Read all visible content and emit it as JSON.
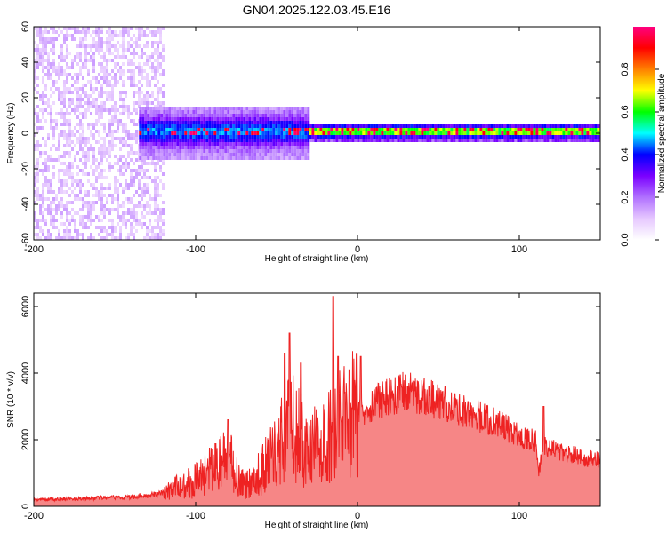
{
  "title": "GN04.2025.122.03.45.E16",
  "chart_data": [
    {
      "type": "heatmap",
      "xlabel": "Height of straight line (km)",
      "ylabel": "Frequency (Hz)",
      "xlim": [
        -200,
        150
      ],
      "ylim": [
        -60,
        60
      ],
      "xticks": [
        -200,
        -100,
        0,
        100
      ],
      "yticks": [
        -60,
        -40,
        -20,
        0,
        20,
        40,
        60
      ],
      "colorbar": {
        "label": "Normalized spectral amplitude",
        "range": [
          0,
          1
        ],
        "ticks": [
          0.0,
          0.2,
          0.4,
          0.6,
          0.8
        ],
        "colormap": [
          "#ffffff",
          "#e6c8ff",
          "#b070ff",
          "#7a00ff",
          "#0000ff",
          "#00ffff",
          "#00ff00",
          "#ffff00",
          "#ff8000",
          "#ff0000",
          "#ff0080"
        ]
      },
      "regions": [
        {
          "x_from": -200,
          "x_to": -120,
          "freq_spread": [
            -60,
            60
          ],
          "amplitude": 0.15
        },
        {
          "x_from": -135,
          "x_to": -30,
          "freq_spread": [
            -15,
            15
          ],
          "amplitude": 0.45
        },
        {
          "x_from": -30,
          "x_to": 150,
          "freq_spread": [
            -5,
            5
          ],
          "amplitude": 0.7
        }
      ],
      "peak_line_freq_hz": 0
    },
    {
      "type": "line",
      "xlabel": "Height of straight line (km)",
      "ylabel": "SNR (10 * v/v)",
      "xlim": [
        -200,
        150
      ],
      "ylim": [
        0,
        6400
      ],
      "xticks": [
        -200,
        -100,
        0,
        100
      ],
      "yticks": [
        0,
        2000,
        4000,
        6000
      ],
      "color": "#ee2222",
      "x": [
        -200,
        -180,
        -160,
        -140,
        -130,
        -120,
        -110,
        -100,
        -90,
        -80,
        -75,
        -70,
        -60,
        -50,
        -45,
        -40,
        -35,
        -30,
        -25,
        -20,
        -15,
        -10,
        -5,
        0,
        10,
        20,
        30,
        40,
        50,
        60,
        70,
        80,
        90,
        100,
        110,
        112,
        115,
        120,
        130,
        140,
        150
      ],
      "values": [
        200,
        220,
        250,
        280,
        320,
        400,
        600,
        800,
        1100,
        1500,
        1000,
        600,
        1000,
        1700,
        2200,
        2400,
        2000,
        1500,
        1900,
        1800,
        2300,
        2500,
        2700,
        2900,
        3100,
        3300,
        3450,
        3300,
        3150,
        3000,
        2800,
        2600,
        2400,
        2150,
        1950,
        1000,
        1900,
        1750,
        1600,
        1450,
        1400
      ],
      "spikes": [
        {
          "x": -80,
          "value": 2600
        },
        {
          "x": -45,
          "value": 4600
        },
        {
          "x": -42,
          "value": 5200
        },
        {
          "x": -35,
          "value": 4300
        },
        {
          "x": -15,
          "value": 6300
        },
        {
          "x": -12,
          "value": 4500
        },
        {
          "x": -5,
          "value": 4100
        },
        {
          "x": 2,
          "value": 4500
        },
        {
          "x": 115,
          "value": 3000
        }
      ]
    }
  ]
}
